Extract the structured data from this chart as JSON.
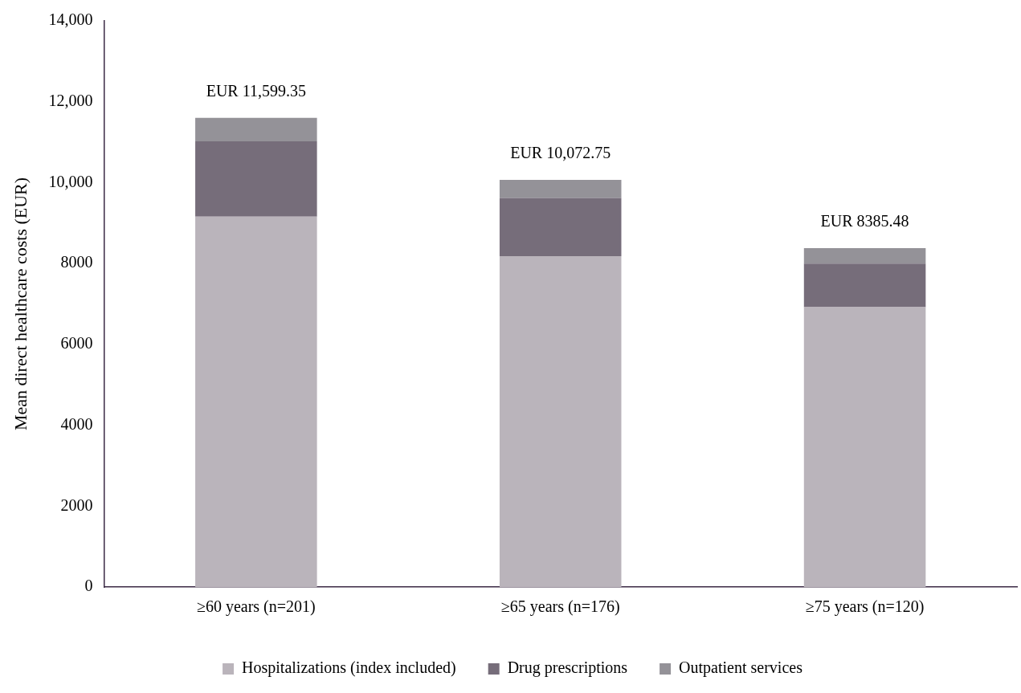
{
  "chart_data": {
    "type": "bar",
    "stacked": true,
    "ylabel": "Mean direct healthcare costs (EUR)",
    "categories": [
      "≥60 years (n=201)",
      "≥65 years (n=176)",
      "≥75 years (n=120)"
    ],
    "series": [
      {
        "name": "Hospitalizations (index included)",
        "color": "#bab4bb",
        "values": [
          9160,
          8180,
          6920
        ]
      },
      {
        "name": "Drug prescriptions",
        "color": "#766d7a",
        "values": [
          1860,
          1440,
          1080
        ]
      },
      {
        "name": "Outpatient services",
        "color": "#949298",
        "values": [
          580,
          450,
          380
        ]
      }
    ],
    "totals": [
      "EUR 11,599.35",
      "EUR 10,072.75",
      "EUR 8385.48"
    ],
    "ylim": [
      0,
      14000
    ],
    "yticks": [
      0,
      2000,
      4000,
      6000,
      8000,
      {
        "value": 10000,
        "label": "10,000"
      },
      {
        "value": 12000,
        "label": "12,000"
      },
      {
        "value": 14000,
        "label": "14,000"
      }
    ],
    "grid": false,
    "legend": "bottom"
  }
}
